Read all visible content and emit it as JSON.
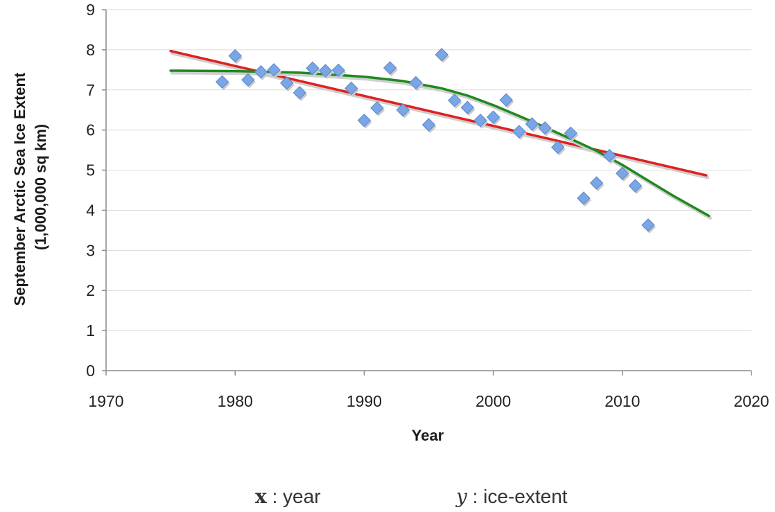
{
  "chart_data": {
    "type": "scatter",
    "title": "",
    "xlabel": "Year",
    "ylabel_lines": [
      "September Arctic Sea Ice Extent",
      "(1,000,000 sq km)"
    ],
    "xlim": [
      1970,
      2020
    ],
    "ylim": [
      0,
      9
    ],
    "x_ticks": [
      "1970",
      "1980",
      "1990",
      "2000",
      "2010",
      "2020"
    ],
    "y_ticks": [
      "0",
      "1",
      "2",
      "3",
      "4",
      "5",
      "6",
      "7",
      "8",
      "9"
    ],
    "grid": "horizontal",
    "legend": "none",
    "series": [
      {
        "kind": "points",
        "marker": "diamond",
        "color": "#7aa6e6",
        "x": [
          1979,
          1980,
          1981,
          1982,
          1983,
          1984,
          1985,
          1986,
          1987,
          1988,
          1989,
          1990,
          1991,
          1992,
          1993,
          1994,
          1995,
          1996,
          1997,
          1998,
          1999,
          2000,
          2001,
          2002,
          2003,
          2004,
          2005,
          2006,
          2007,
          2008,
          2009,
          2010,
          2011,
          2012
        ],
        "y": [
          7.2,
          7.85,
          7.25,
          7.45,
          7.5,
          7.17,
          6.93,
          7.54,
          7.48,
          7.49,
          7.04,
          6.24,
          6.55,
          7.55,
          6.5,
          7.18,
          6.13,
          7.88,
          6.74,
          6.56,
          6.24,
          6.32,
          6.75,
          5.96,
          6.15,
          6.05,
          5.57,
          5.92,
          4.3,
          4.68,
          5.36,
          4.92,
          4.61,
          3.63
        ]
      },
      {
        "kind": "linear-trend",
        "color": "#e02020",
        "x": [
          1975,
          2016.5
        ],
        "y": [
          7.97,
          4.87
        ]
      },
      {
        "kind": "curve-trend",
        "color": "#1e8a1e",
        "x": [
          1975,
          1980,
          1985,
          1990,
          1993,
          1996,
          1998,
          2000,
          2002,
          2004,
          2006,
          2008,
          2010,
          2012,
          2014,
          2016.7
        ],
        "y": [
          7.48,
          7.47,
          7.43,
          7.33,
          7.22,
          7.04,
          6.86,
          6.62,
          6.35,
          6.07,
          5.78,
          5.48,
          5.13,
          4.74,
          4.35,
          3.86
        ]
      }
    ]
  },
  "caption": {
    "x_var": "x",
    "x_sep": " : ",
    "x_text": "year",
    "y_var": "y",
    "y_sep": " : ",
    "y_text": "ice-extent"
  }
}
